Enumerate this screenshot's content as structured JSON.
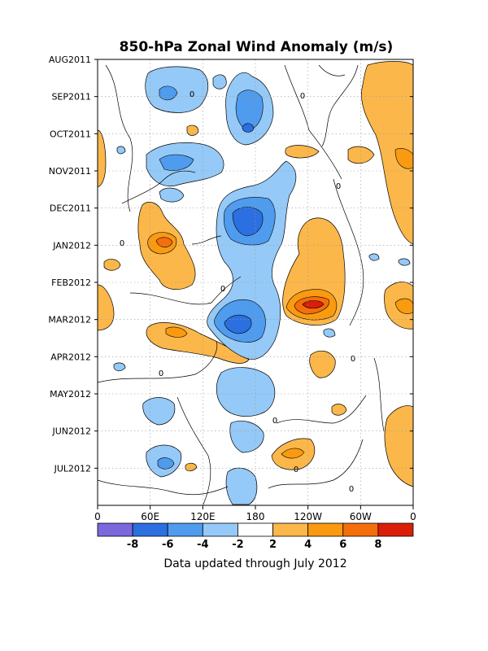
{
  "chart_data": {
    "type": "heatmap",
    "title": "850-hPa Zonal Wind Anomaly (m/s)",
    "y_tick_labels": [
      "AUG2011",
      "SEP2011",
      "OCT2011",
      "NOV2011",
      "DEC2011",
      "JAN2012",
      "FEB2012",
      "MAR2012",
      "APR2012",
      "MAY2012",
      "JUN2012",
      "JUL2012"
    ],
    "x_tick_labels": [
      "0",
      "60E",
      "120E",
      "180",
      "120W",
      "60W",
      "0"
    ],
    "x_range_deg_east": [
      0,
      360
    ],
    "grid": "dotted",
    "colorbar": {
      "tick_labels": [
        "-8",
        "-6",
        "-4",
        "-2",
        "2",
        "4",
        "6",
        "8"
      ],
      "levels": [
        -8,
        -6,
        -4,
        -2,
        2,
        4,
        6,
        8
      ],
      "colors": [
        "#7b68dd",
        "#2b6fe0",
        "#4f9bee",
        "#95c9f7",
        "#ffffff",
        "#fbb74a",
        "#f99a10",
        "#f46e0c",
        "#db1e08"
      ]
    },
    "contour_label": "0",
    "anomaly_regions": [
      {
        "lon": 88,
        "time": "JAN2012",
        "value": 7
      },
      {
        "lon": 245,
        "time": "FEB2012",
        "value": 9
      },
      {
        "lon": 170,
        "time": "DEC2011",
        "value": -7
      },
      {
        "lon": 162,
        "time": "MAR2012",
        "value": -7
      },
      {
        "lon": 165,
        "time": "SEP2011",
        "value": -5
      },
      {
        "lon": 85,
        "time": "OCT2011",
        "value": -5
      },
      {
        "lon": 80,
        "time": "JUN2012",
        "value": -5
      },
      {
        "lon": 230,
        "time": "JUN2012",
        "value": 5
      },
      {
        "lon": 90,
        "time": "MAR2012",
        "value": 4
      },
      {
        "lon": 350,
        "time": "FEB2012",
        "value": 4
      }
    ],
    "footnote": "Data updated through July 2012"
  }
}
